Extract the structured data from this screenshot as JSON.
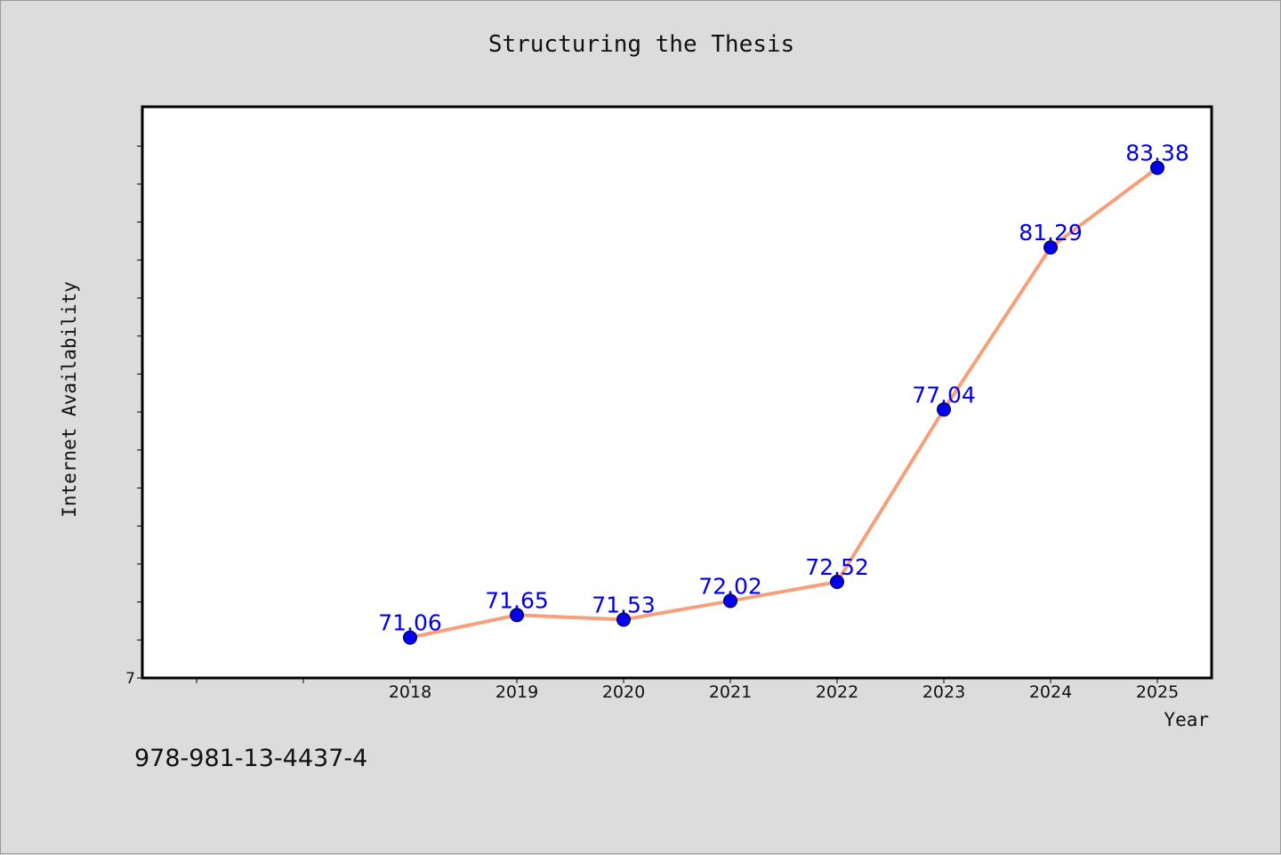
{
  "chart_data": {
    "type": "line",
    "title": "Structuring the Thesis",
    "xlabel": "Year",
    "ylabel": "Internet Availability",
    "x": [
      "2018",
      "2019",
      "2020",
      "2021",
      "2022",
      "2023",
      "2024",
      "2025"
    ],
    "series": [
      {
        "values": [
          71.06,
          71.65,
          71.53,
          72.02,
          72.52,
          77.04,
          81.29,
          83.38
        ],
        "labels": [
          "71.06",
          "71.65",
          "71.53",
          "72.02",
          "72.52",
          "77.04",
          "81.29",
          "83.38"
        ],
        "line_color": "#f5a07a",
        "marker_color": "#0000ee",
        "label_color": "#0000ee"
      }
    ],
    "ytick_labels": [
      "7"
    ],
    "grid": false,
    "legend": "none"
  },
  "footer_text": "978-981-13-4437-4",
  "colors": {
    "background": "#dcdcdc",
    "plot_background": "#ffffff",
    "axis": "#000000"
  }
}
